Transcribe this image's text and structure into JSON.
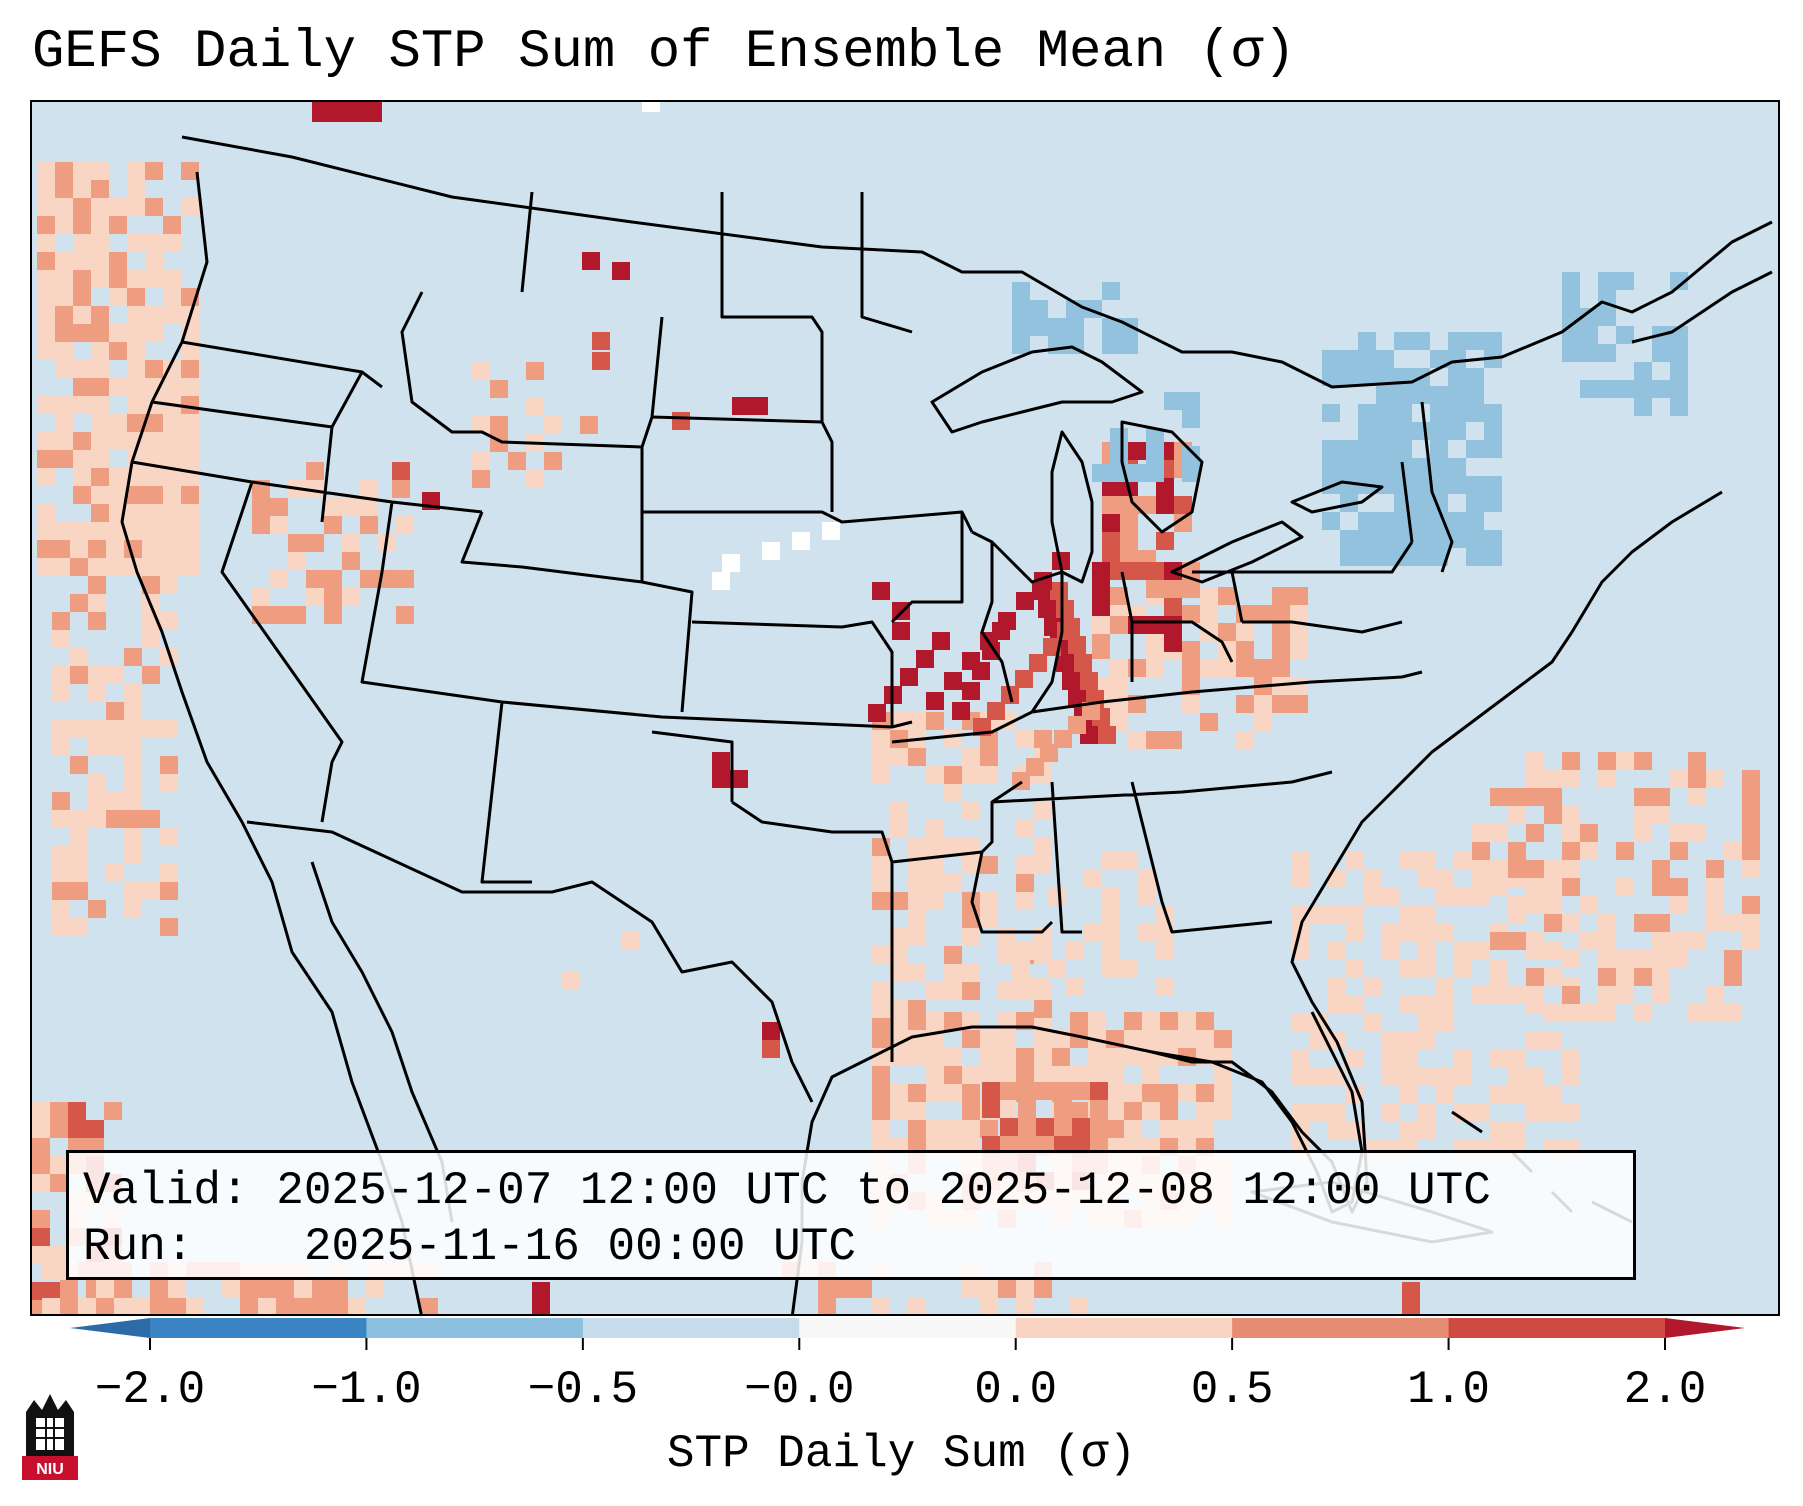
{
  "title": "GEFS Daily STP Sum of Ensemble Mean (σ)",
  "info": {
    "valid_label": "Valid:",
    "valid_value": "2025-12-07 12:00 UTC to 2025-12-08 12:00 UTC",
    "run_label": "Run:",
    "run_value": "2025-11-16 00:00 UTC"
  },
  "colorbar": {
    "label": "STP Daily Sum (σ)",
    "ticks": [
      "−2.0",
      "−1.0",
      "−0.5",
      "−0.0",
      "0.0",
      "0.5",
      "1.0",
      "2.0"
    ],
    "colors": [
      "#3a84c4",
      "#8dbfde",
      "#c6dcea",
      "#f7f7f7",
      "#f8d3c1",
      "#e58c72",
      "#cf4a42"
    ],
    "under_color": "#2c6aa8",
    "over_color": "#b2182b"
  },
  "map": {
    "background_color": "#cfe2ee",
    "line_color": "#000000",
    "palette": {
      "light_pos": "#f9d5c3",
      "mid_pos": "#ef9d80",
      "strong_pos": "#d4574a",
      "extreme_pos": "#b2182b",
      "light_neg": "#93c2df",
      "white": "#ffffff"
    }
  },
  "logo": {
    "text": "NIU"
  }
}
